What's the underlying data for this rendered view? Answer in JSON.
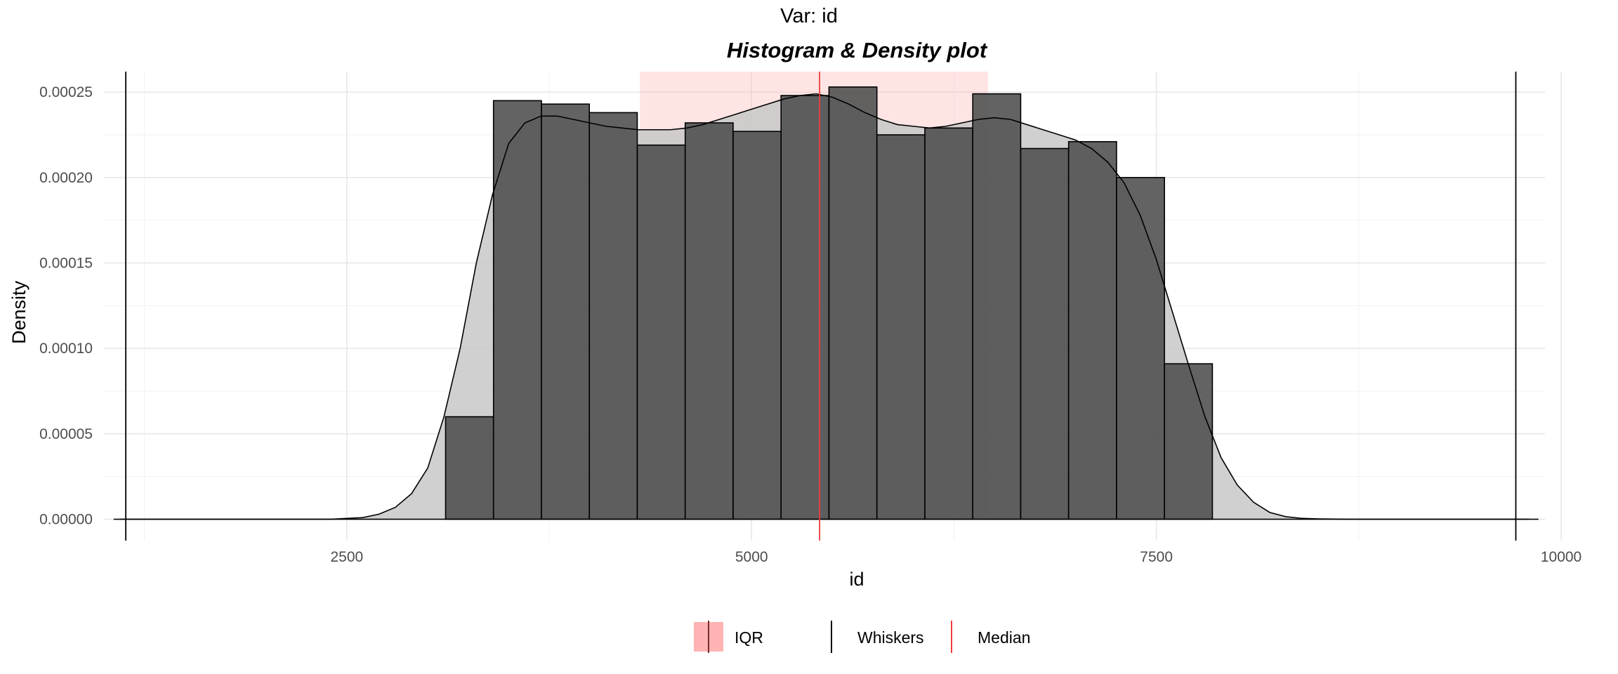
{
  "chart_data": {
    "type": "bar",
    "suptitle": "Var: id",
    "title": "Histogram & Density plot",
    "xlabel": "id",
    "ylabel": "Density",
    "xlim": [
      1000,
      9900
    ],
    "ylim": [
      -1.25e-05,
      0.000262
    ],
    "x_ticks": [
      2500,
      5000,
      7500,
      10000
    ],
    "x_tick_labels": [
      "2500",
      "5000",
      "7500",
      "10000"
    ],
    "y_ticks": [
      0,
      5e-05,
      0.0001,
      0.00015,
      0.0002,
      0.00025
    ],
    "y_tick_labels": [
      "0.00000",
      "0.00005",
      "0.00010",
      "0.00015",
      "0.00020",
      "0.00025"
    ],
    "grid": true,
    "histogram": {
      "bin_edges": [
        3110,
        3406,
        3702,
        3998,
        4294,
        4590,
        4886,
        5182,
        5478,
        5774,
        6070,
        6366,
        6662,
        6958,
        7254,
        7550,
        7846
      ],
      "values": [
        6e-05,
        0.000245,
        0.000243,
        0.000238,
        0.000219,
        0.000232,
        0.000227,
        0.000248,
        0.000253,
        0.000225,
        0.000229,
        0.000249,
        0.000217,
        0.000221,
        0.0002,
        9.1e-05
      ],
      "fill": "#4d4d4d",
      "stroke": "#000000"
    },
    "density": {
      "x": [
        1100,
        2400,
        2600,
        2700,
        2800,
        2900,
        3000,
        3100,
        3200,
        3300,
        3400,
        3500,
        3600,
        3700,
        3800,
        3900,
        4000,
        4100,
        4200,
        4300,
        4400,
        4500,
        4600,
        4700,
        4800,
        4900,
        5000,
        5100,
        5200,
        5300,
        5400,
        5500,
        5600,
        5700,
        5800,
        5900,
        6000,
        6100,
        6200,
        6300,
        6400,
        6500,
        6600,
        6700,
        6800,
        6900,
        7000,
        7100,
        7200,
        7300,
        7400,
        7500,
        7600,
        7700,
        7800,
        7900,
        8000,
        8100,
        8200,
        8300,
        8400,
        8500,
        8600,
        8700,
        9800
      ],
      "y": [
        0,
        0,
        1e-06,
        3e-06,
        7e-06,
        1.5e-05,
        3e-05,
        6e-05,
        0.0001,
        0.00015,
        0.00019,
        0.00022,
        0.000232,
        0.000236,
        0.000236,
        0.000234,
        0.000232,
        0.00023,
        0.000229,
        0.000228,
        0.000228,
        0.000228,
        0.000229,
        0.000231,
        0.000234,
        0.000237,
        0.00024,
        0.000243,
        0.000246,
        0.000248,
        0.000249,
        0.000247,
        0.000243,
        0.000238,
        0.000234,
        0.000231,
        0.00023,
        0.000229,
        0.00023,
        0.000232,
        0.000234,
        0.000235,
        0.000234,
        0.000231,
        0.000228,
        0.000225,
        0.000222,
        0.000217,
        0.000209,
        0.000197,
        0.000178,
        0.000152,
        0.000121,
        9e-05,
        6e-05,
        3.6e-05,
        2e-05,
        1e-05,
        4e-06,
        1.5e-06,
        5e-07,
        2e-07,
        1e-07,
        0,
        0
      ],
      "fill": "#c8c8c8",
      "stroke": "#000000"
    },
    "iqr": [
      4310,
      6460
    ],
    "iqr_color": "#ffb3b3",
    "median": 5420,
    "median_color": "#f03c3c",
    "whiskers": [
      1135,
      9720
    ],
    "baseline": [
      1060,
      9860
    ],
    "legend_position": "bottom",
    "legend": {
      "iqr_label": "IQR",
      "whiskers_label": "Whiskers",
      "median_label": "Median"
    }
  }
}
